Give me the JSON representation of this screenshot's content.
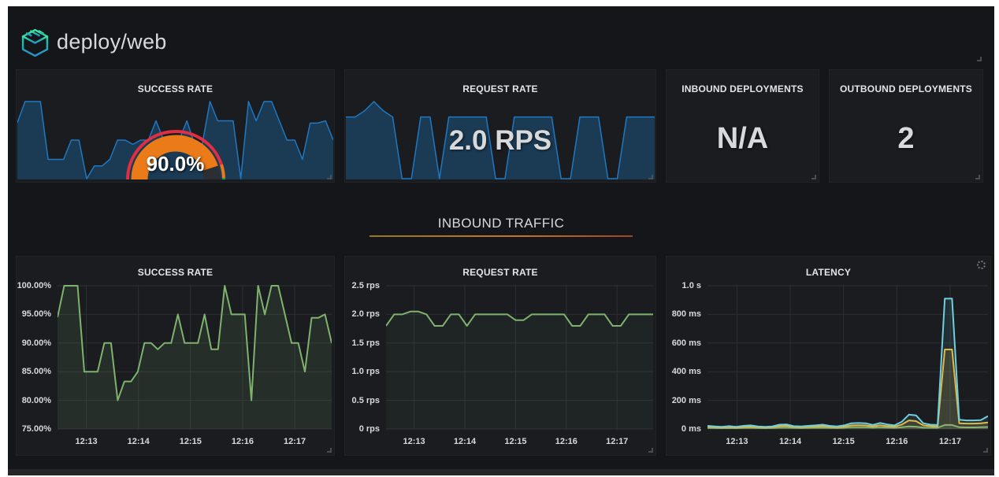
{
  "header": {
    "title": "deploy/web",
    "logo_icon": "linkerd-cube-icon"
  },
  "colors": {
    "page_margin": "#ffffff",
    "dashboard_bg": "#141619",
    "panel_bg": "#1a1c20",
    "grid": "#2c2f34",
    "text": "#d8d9da",
    "sparkline_blue": "#1f78c1",
    "green": "#7eb26d",
    "yellow": "#eab839",
    "cyan": "#6ed0e0",
    "gauge_orange": "#eb7b18",
    "gauge_red": "#e02f44",
    "gauge_green": "#299c46"
  },
  "top_row": {
    "success_rate": {
      "title": "SUCCESS RATE",
      "gauge": {
        "label": "90.0%",
        "percent": 90,
        "fill_color": "#eb7b18",
        "track_color": "#2b2e33",
        "ring": [
          {
            "to": 90,
            "color": "#e02f44"
          },
          {
            "to": 99,
            "color": "#eb7b18"
          },
          {
            "to": 100,
            "color": "#299c46"
          }
        ]
      }
    },
    "request_rate": {
      "title": "REQUEST RATE",
      "value": "2.0 RPS"
    },
    "inbound_deployments": {
      "title": "INBOUND DEPLOYMENTS",
      "value": "N/A"
    },
    "outbound_deployments": {
      "title": "OUTBOUND DEPLOYMENTS",
      "value": "2"
    }
  },
  "section": {
    "title": "INBOUND TRAFFIC"
  },
  "chart_data": [
    {
      "id": "success_sparkline",
      "type": "area-sparkline",
      "line_color": "#1f78c1",
      "fill_color": "rgba(31,120,193,0.32)",
      "ymin": 80,
      "ymax": 100,
      "values": [
        94.5,
        100,
        100,
        100,
        85,
        85,
        85,
        90,
        90,
        80,
        83.3,
        83.3,
        85,
        90,
        90,
        88.9,
        90,
        90,
        95,
        90,
        90,
        90,
        95,
        88.9,
        88.9,
        100,
        95,
        95,
        95,
        80,
        100,
        95,
        100,
        100,
        95,
        90,
        90,
        85,
        94.4,
        94.4,
        95,
        90
      ]
    },
    {
      "id": "request_sparkline",
      "type": "area-sparkline",
      "line_color": "#1f78c1",
      "fill_color": "rgba(31,120,193,0.32)",
      "ymin": 1.8,
      "ymax": 2.05,
      "values": [
        2,
        2,
        2.02,
        2.05,
        2.02,
        2,
        1.8,
        1.8,
        2,
        2,
        1.8,
        2,
        2,
        2,
        2,
        2,
        1.8,
        1.8,
        2,
        2,
        2,
        2,
        2,
        1.8,
        1.8,
        2,
        2,
        2,
        1.8,
        1.8,
        2,
        2,
        2,
        2
      ]
    },
    {
      "id": "success_chart",
      "type": "line",
      "title": "SUCCESS RATE",
      "ymin": 75,
      "ymax": 100,
      "y_ticks": [
        "100.00%",
        "95.00%",
        "90.00%",
        "85.00%",
        "80.00%",
        "75.00%"
      ],
      "x_ticks": {
        "labels": [
          "12:13",
          "12:14",
          "12:15",
          "12:16",
          "12:17"
        ],
        "fracs": [
          0.105,
          0.295,
          0.485,
          0.675,
          0.865
        ]
      },
      "series": [
        {
          "name": "success-rate",
          "color": "#7eb26d",
          "fill_opacity": 0.12,
          "values": [
            94.5,
            100,
            100,
            100,
            85,
            85,
            85,
            90,
            90,
            80,
            83.3,
            83.3,
            85,
            90,
            90,
            88.9,
            90,
            90,
            95,
            90,
            90,
            90,
            95,
            88.9,
            88.9,
            100,
            95,
            95,
            95,
            80,
            100,
            95,
            100,
            100,
            95,
            90,
            90,
            85,
            94.4,
            94.4,
            95,
            90
          ]
        }
      ]
    },
    {
      "id": "request_chart",
      "type": "line",
      "title": "REQUEST RATE",
      "ymin": 0,
      "ymax": 2.5,
      "y_ticks": [
        "2.5 rps",
        "2.0 rps",
        "1.5 rps",
        "1.0 rps",
        "0.5 rps",
        "0 rps"
      ],
      "x_ticks": {
        "labels": [
          "12:13",
          "12:14",
          "12:15",
          "12:16",
          "12:17"
        ],
        "fracs": [
          0.105,
          0.295,
          0.485,
          0.675,
          0.865
        ]
      },
      "series": [
        {
          "name": "request-rate",
          "color": "#7eb26d",
          "fill_opacity": 0.06,
          "values": [
            1.8,
            2,
            2,
            2.05,
            2.05,
            2,
            1.8,
            1.8,
            2,
            2,
            1.8,
            2,
            2,
            2,
            2,
            2,
            1.9,
            1.9,
            2,
            2,
            2,
            2,
            2,
            1.8,
            1.8,
            2,
            2,
            2,
            1.8,
            1.8,
            2,
            2,
            2,
            2
          ]
        }
      ]
    },
    {
      "id": "latency_chart",
      "type": "line",
      "title": "LATENCY",
      "ymin": 0,
      "ymax": 1000,
      "y_ticks": [
        "1.0 s",
        "800 ms",
        "600 ms",
        "400 ms",
        "200 ms",
        "0 ms"
      ],
      "x_ticks": {
        "labels": [
          "12:13",
          "12:14",
          "12:15",
          "12:16",
          "12:17"
        ],
        "fracs": [
          0.105,
          0.295,
          0.485,
          0.675,
          0.865
        ]
      },
      "series": [
        {
          "name": "latency-green",
          "color": "#7eb26d",
          "fill_opacity": 0.15,
          "values": [
            8,
            7,
            6,
            7,
            6,
            8,
            9,
            7,
            6,
            7,
            10,
            10,
            8,
            7,
            8,
            9,
            10,
            8,
            7,
            9,
            12,
            12,
            12,
            10,
            12,
            10,
            9,
            12,
            18,
            16,
            10,
            9,
            9,
            28,
            28,
            12,
            11,
            11,
            12,
            14
          ]
        },
        {
          "name": "latency-yellow",
          "color": "#eab839",
          "fill_opacity": 0.15,
          "values": [
            15,
            12,
            10,
            13,
            10,
            14,
            16,
            12,
            10,
            12,
            20,
            22,
            14,
            12,
            15,
            16,
            20,
            15,
            12,
            16,
            25,
            26,
            25,
            18,
            26,
            20,
            16,
            30,
            60,
            55,
            25,
            20,
            18,
            555,
            555,
            40,
            38,
            38,
            40,
            45
          ]
        },
        {
          "name": "latency-cyan",
          "color": "#6ed0e0",
          "fill_opacity": 0.1,
          "values": [
            22,
            18,
            15,
            20,
            15,
            22,
            25,
            18,
            15,
            18,
            30,
            32,
            20,
            18,
            22,
            25,
            30,
            22,
            18,
            25,
            40,
            42,
            40,
            28,
            42,
            32,
            25,
            50,
            100,
            95,
            40,
            30,
            28,
            910,
            910,
            65,
            60,
            60,
            62,
            90
          ]
        }
      ]
    }
  ]
}
